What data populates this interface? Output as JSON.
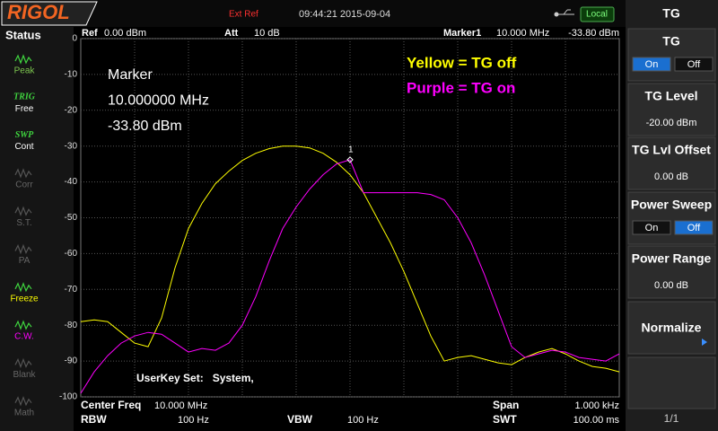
{
  "top_bar": {
    "logo": "RIGOL",
    "ext_ref": "Ext Ref",
    "datetime": "09:44:21 2015-09-04",
    "local": "Local"
  },
  "status_panel": {
    "title": "Status",
    "items": [
      {
        "label": "Peak",
        "active": true,
        "color": "#7ec850"
      },
      {
        "tag": "TRIG",
        "label": "Free",
        "active": true,
        "color": "#ffffff"
      },
      {
        "tag": "SWP",
        "label": "Cont",
        "active": true,
        "color": "#ffffff"
      },
      {
        "label": "Corr",
        "active": false,
        "color": "#666666"
      },
      {
        "label": "S.T.",
        "active": false,
        "color": "#666666"
      },
      {
        "label": "PA",
        "active": false,
        "color": "#666666"
      },
      {
        "label": "Freeze",
        "active": true,
        "color": "#ffff00"
      },
      {
        "label": "C.W.",
        "active": true,
        "color": "#ff00ff"
      },
      {
        "label": "Blank",
        "active": false,
        "color": "#666666"
      },
      {
        "label": "Math",
        "active": false,
        "color": "#666666"
      }
    ]
  },
  "header": {
    "ref": "Ref",
    "ref_value": "0.00 dBm",
    "att": "Att",
    "att_value": "10 dB",
    "marker": "Marker1",
    "marker_freq": "10.000 MHz",
    "marker_level": "-33.80 dBm"
  },
  "chart_data": {
    "type": "line",
    "ylim": [
      -100,
      0
    ],
    "yticks": [
      0,
      -10,
      -20,
      -30,
      -40,
      -50,
      -60,
      -70,
      -80,
      -90,
      -100
    ],
    "grid": true,
    "series": [
      {
        "name": "Yellow = TG off",
        "color": "#ffff00",
        "values": [
          -79,
          -78.5,
          -79,
          -82,
          -85,
          -86,
          -78,
          -64,
          -53,
          -46,
          -40.5,
          -37,
          -34,
          -32,
          -30.7,
          -30,
          -30,
          -30.5,
          -32,
          -34.5,
          -38,
          -43,
          -50,
          -57,
          -65,
          -74,
          -83,
          -90,
          -89,
          -88.5,
          -89.5,
          -90.5,
          -91,
          -89,
          -87.5,
          -86.5,
          -88,
          -90,
          -91.5,
          -92,
          -93
        ]
      },
      {
        "name": "Purple = TG on",
        "color": "#ff00ff",
        "values": [
          -99,
          -93,
          -88.5,
          -85,
          -83,
          -82,
          -82.5,
          -85,
          -87.5,
          -86.5,
          -87,
          -85,
          -80,
          -72,
          -62,
          -53,
          -47,
          -42,
          -38,
          -35,
          -33.8,
          -43,
          -43,
          -43,
          -43,
          -43,
          -43.5,
          -45,
          -50,
          -57,
          -66,
          -76,
          -86,
          -89,
          -88,
          -87,
          -87.5,
          -89,
          -89.5,
          -90,
          -88
        ]
      }
    ],
    "marker": {
      "label": "1",
      "value": -33.8
    },
    "marker_readout": [
      "Marker",
      "10.000000 MHz",
      "-33.80 dBm"
    ],
    "annotation": "UserKey Set:   System,"
  },
  "footer": {
    "center_freq": "Center Freq",
    "center_value": "10.000 MHz",
    "span": "Span",
    "span_value": "1.000 kHz",
    "rbw": "RBW",
    "rbw_value": "100 Hz",
    "vbw": "VBW",
    "vbw_value": "100 Hz",
    "swt": "SWT",
    "swt_value": "100.00 ms"
  },
  "menu": {
    "title": "TG",
    "items": [
      {
        "label": "TG",
        "options": [
          "On",
          "Off"
        ],
        "selected": 0
      },
      {
        "label": "TG Level",
        "value": "-20.00 dBm"
      },
      {
        "label": "TG Lvl Offset",
        "value": "0.00 dB"
      },
      {
        "label": "Power Sweep",
        "options": [
          "On",
          "Off"
        ],
        "selected": 1
      },
      {
        "label": "Power Range",
        "value": "0.00 dB"
      },
      {
        "label": "Normalize"
      }
    ],
    "page": "1/1"
  }
}
